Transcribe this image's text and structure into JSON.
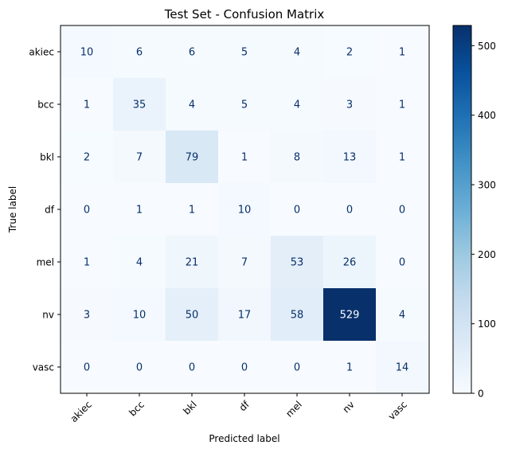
{
  "chart_data": {
    "type": "heatmap",
    "title": "Test Set - Confusion Matrix",
    "xlabel": "Predicted label",
    "ylabel": "True label",
    "x_categories": [
      "akiec",
      "bcc",
      "bkl",
      "df",
      "mel",
      "nv",
      "vasc"
    ],
    "y_categories": [
      "akiec",
      "bcc",
      "bkl",
      "df",
      "mel",
      "nv",
      "vasc"
    ],
    "matrix": [
      [
        10,
        6,
        6,
        5,
        4,
        2,
        1
      ],
      [
        1,
        35,
        4,
        5,
        4,
        3,
        1
      ],
      [
        2,
        7,
        79,
        1,
        8,
        13,
        1
      ],
      [
        0,
        1,
        1,
        10,
        0,
        0,
        0
      ],
      [
        1,
        4,
        21,
        7,
        53,
        26,
        0
      ],
      [
        3,
        10,
        50,
        17,
        58,
        529,
        4
      ],
      [
        0,
        0,
        0,
        0,
        0,
        1,
        14
      ]
    ],
    "colormap": "Blues",
    "vmin": 0,
    "vmax": 529,
    "colorbar_ticks": [
      0,
      100,
      200,
      300,
      400,
      500
    ],
    "text_color_dark": "#08306b",
    "text_color_light": "#ffffff"
  }
}
